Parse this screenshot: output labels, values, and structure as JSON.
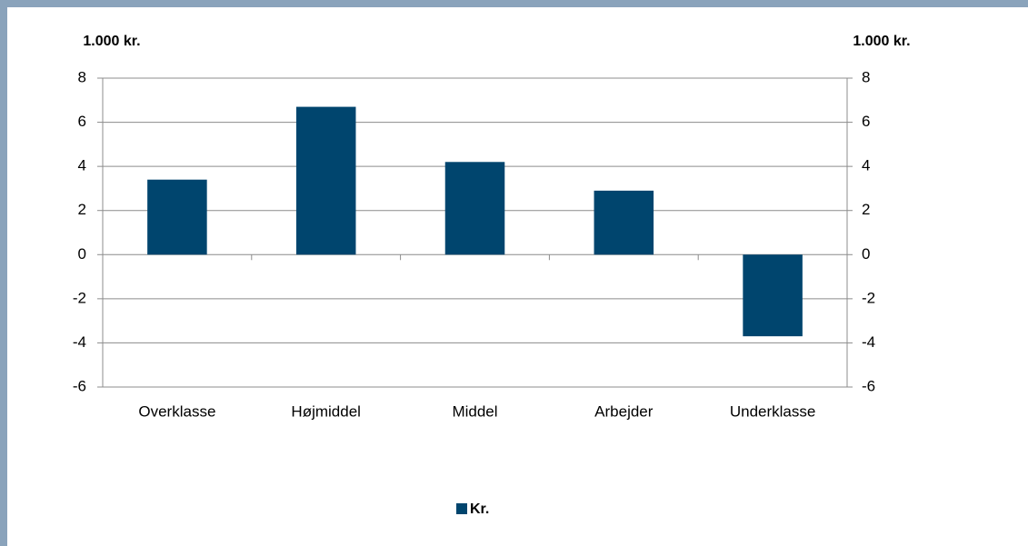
{
  "chart_data": {
    "type": "bar",
    "ylabel": "1.000 kr.",
    "y2label": "1.000 kr.",
    "categories": [
      "Overklasse",
      "Højmiddel",
      "Middel",
      "Arbejder",
      "Underklasse"
    ],
    "series": [
      {
        "name": "Kr.",
        "color": "#00456e",
        "values": [
          3.4,
          6.7,
          4.2,
          2.9,
          -3.7
        ]
      }
    ],
    "ylim": [
      -6,
      8
    ],
    "yticks": [
      -6,
      -4,
      -2,
      0,
      2,
      4,
      6,
      8
    ],
    "y2lim": [
      -6,
      8
    ],
    "y2ticks": [
      -6,
      -4,
      -2,
      0,
      2,
      4,
      6,
      8
    ],
    "grid": true,
    "legend": "bottom"
  }
}
